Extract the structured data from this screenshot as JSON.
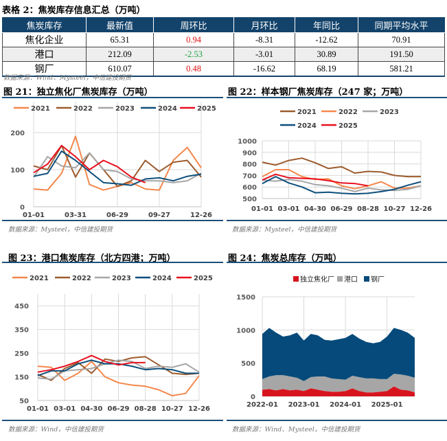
{
  "table": {
    "title": "表格 2：焦炭库存信息汇总（万吨）",
    "headers": [
      "焦炭库存",
      "最新值",
      "周环比",
      "月环比",
      "年同比",
      "同期平均水平"
    ],
    "rows": [
      {
        "name": "焦化企业",
        "latest": "65.31",
        "wow": "0.94",
        "mom": "-8.31",
        "yoy": "-12.62",
        "avg": "70.91",
        "wow_dir": "up"
      },
      {
        "name": "港口",
        "latest": "212.09",
        "wow": "-2.53",
        "mom": "-3.01",
        "yoy": "30.89",
        "avg": "191.50",
        "wow_dir": "down"
      },
      {
        "name": "钢厂",
        "latest": "610.07",
        "wow": "0.48",
        "mom": "-16.62",
        "yoy": "68.19",
        "avg": "581.21",
        "wow_dir": "up"
      }
    ],
    "source": "数据来源：Wind、Mysteel，中信建投期货",
    "colors": {
      "header": "#13436b",
      "up": "#e01010",
      "down": "#1aa23b"
    }
  },
  "chart_data": [
    {
      "type": "line",
      "title": "图 21：独立焦化厂焦炭库存（万吨）",
      "source": "数据来源：Mysteel，中信建投期货",
      "x_ticks": [
        "01-01",
        "03-31",
        "06-29",
        "09-27",
        "12-26"
      ],
      "y_ticks": [
        0,
        100,
        200
      ],
      "ylim": [
        0,
        250
      ],
      "grid": true,
      "legend": "top",
      "series": [
        {
          "name": "2021",
          "color": "#f4874b",
          "values": [
            48,
            45,
            90,
            190,
            60,
            45,
            55,
            65,
            48,
            45,
            125,
            160,
            105
          ]
        },
        {
          "name": "2022",
          "color": "#9c5b2d",
          "values": [
            110,
            100,
            165,
            80,
            145,
            100,
            55,
            70,
            125,
            95,
            120,
            125,
            80
          ]
        },
        {
          "name": "2023",
          "color": "#a6a6a6",
          "values": [
            80,
            135,
            110,
            105,
            145,
            100,
            95,
            75,
            70,
            70,
            65,
            70,
            90
          ]
        },
        {
          "name": "2024",
          "color": "#0d4f7c",
          "values": [
            82,
            90,
            150,
            125,
            95,
            65,
            62,
            58,
            75,
            78,
            70,
            82,
            88
          ]
        },
        {
          "name": "2025",
          "color": "#e8101e",
          "values": [
            92,
            115,
            165,
            135,
            100,
            125,
            108,
            80,
            65
          ]
        }
      ]
    },
    {
      "type": "line",
      "title": "图 22：样本钢厂焦炭库存（247 家；万吨）",
      "source": "数据来源：Mysteel，中信建投期货",
      "x_ticks": [
        "01-01",
        "03-01",
        "04-30",
        "06-29",
        "08-28",
        "10-27",
        "12-26"
      ],
      "y_ticks": [
        500,
        600,
        700,
        800,
        900,
        1000
      ],
      "ylim": [
        500,
        1000
      ],
      "grid": true,
      "legend": "top",
      "series": [
        {
          "name": "2021",
          "color": "#9c5b2d",
          "values": [
            815,
            790,
            830,
            850,
            810,
            760,
            775,
            720,
            735,
            730,
            700,
            690,
            690
          ]
        },
        {
          "name": "2022",
          "color": "#f4874b",
          "values": [
            690,
            750,
            750,
            690,
            665,
            670,
            610,
            585,
            610,
            645,
            590,
            590,
            610
          ]
        },
        {
          "name": "2023",
          "color": "#a6a6a6",
          "values": [
            660,
            650,
            665,
            650,
            620,
            610,
            590,
            560,
            590,
            575,
            570,
            580,
            610
          ]
        },
        {
          "name": "2024",
          "color": "#0d4f7c",
          "values": [
            630,
            690,
            635,
            600,
            550,
            555,
            545,
            540,
            545,
            560,
            580,
            615,
            645
          ]
        },
        {
          "name": "2025",
          "color": "#e8101e",
          "values": [
            660,
            710,
            680,
            675,
            670,
            655,
            635,
            630,
            610
          ]
        }
      ]
    },
    {
      "type": "line",
      "title": "图 23：港口焦炭库存（北方四港；万吨）",
      "source": "数据来源：Wind，中信建投期货",
      "x_ticks": [
        "01-01",
        "03-01",
        "04-30",
        "06-29",
        "08-28",
        "10-27",
        "12-26"
      ],
      "y_ticks": [
        50,
        150,
        250,
        350,
        450
      ],
      "ylim": [
        50,
        500
      ],
      "grid": true,
      "legend": "top",
      "series": [
        {
          "name": "2021",
          "color": "#f4874b",
          "values": [
            195,
            190,
            135,
            165,
            215,
            150,
            125,
            115,
            110,
            95,
            70,
            80,
            155
          ]
        },
        {
          "name": "2022",
          "color": "#9c5b2d",
          "values": [
            160,
            135,
            185,
            210,
            165,
            225,
            215,
            230,
            235,
            200,
            165,
            160,
            165
          ]
        },
        {
          "name": "2023",
          "color": "#a6a6a6",
          "values": [
            145,
            140,
            175,
            180,
            185,
            205,
            220,
            215,
            185,
            195,
            190,
            205,
            170
          ]
        },
        {
          "name": "2024",
          "color": "#0d4f7c",
          "values": [
            155,
            175,
            175,
            205,
            220,
            205,
            205,
            195,
            180,
            185,
            180,
            165,
            165
          ]
        },
        {
          "name": "2025",
          "color": "#e8101e",
          "values": [
            170,
            180,
            195,
            215,
            240,
            215,
            200,
            210,
            210
          ]
        }
      ]
    },
    {
      "type": "area",
      "stacked": true,
      "title": "图 24：焦炭总库存（万吨）",
      "source": "数据来源：Wind、Mysteel，中信建投期货",
      "x": [
        "2022-01",
        "2022-03",
        "2022-05",
        "2022-07",
        "2022-09",
        "2022-11",
        "2023-01",
        "2023-03",
        "2023-05",
        "2023-07",
        "2023-09",
        "2023-11",
        "2024-01",
        "2024-03",
        "2024-05",
        "2024-07",
        "2024-09",
        "2024-11",
        "2025-01",
        "2025-03",
        "2025-05",
        "2025-07",
        "2025-09"
      ],
      "x_ticks": [
        "2022-01",
        "2023-01",
        "2024-01",
        "2025-01"
      ],
      "y_ticks": [
        0,
        500,
        1000,
        1500
      ],
      "ylim": [
        0,
        1500
      ],
      "grid": true,
      "legend": "top",
      "series": [
        {
          "name": "独立焦化厂",
          "color": "#d7141e",
          "values": [
            100,
            110,
            90,
            110,
            90,
            100,
            80,
            120,
            100,
            80,
            70,
            70,
            80,
            120,
            80,
            60,
            60,
            70,
            80,
            150,
            100,
            90,
            60
          ]
        },
        {
          "name": "港口",
          "color": "#a6a6a6",
          "values": [
            160,
            190,
            230,
            210,
            210,
            180,
            150,
            170,
            200,
            220,
            200,
            190,
            170,
            190,
            210,
            210,
            210,
            190,
            180,
            190,
            230,
            220,
            220
          ]
        },
        {
          "name": "钢厂",
          "color": "#054a7a",
          "values": [
            680,
            730,
            640,
            580,
            620,
            680,
            610,
            650,
            620,
            550,
            570,
            600,
            630,
            630,
            580,
            550,
            530,
            560,
            640,
            690,
            670,
            650,
            600
          ]
        }
      ]
    }
  ]
}
